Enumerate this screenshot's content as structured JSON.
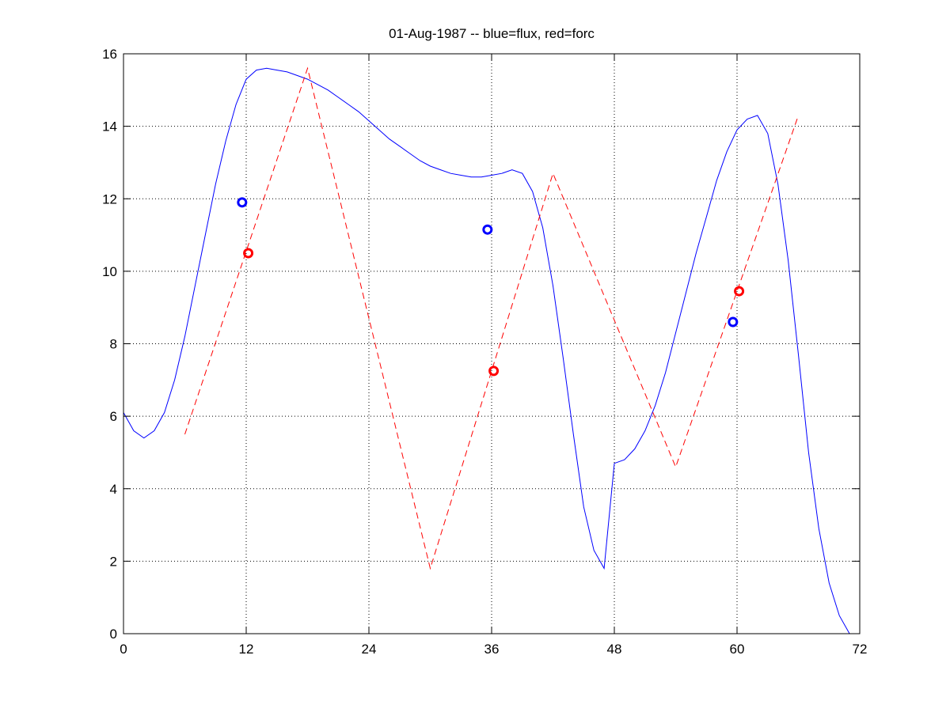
{
  "chart_data": {
    "type": "line",
    "title": "01-Aug-1987 -- blue=flux, red=forc",
    "xlabel": "",
    "ylabel": "",
    "xlim": [
      0,
      72
    ],
    "ylim": [
      0,
      16
    ],
    "xticks": [
      0,
      12,
      24,
      36,
      48,
      60,
      72
    ],
    "yticks": [
      0,
      2,
      4,
      6,
      8,
      10,
      12,
      14,
      16
    ],
    "grid": true,
    "series": [
      {
        "color": "#0000ff",
        "style": "solid",
        "x": [
          0,
          1,
          2,
          3,
          4,
          5,
          6,
          7,
          8,
          9,
          10,
          11,
          12,
          13,
          14,
          15,
          16,
          17,
          18,
          19,
          20,
          21,
          22,
          23,
          24,
          25,
          26,
          27,
          28,
          29,
          30,
          31,
          32,
          33,
          34,
          35,
          36,
          37,
          38,
          39,
          40,
          41,
          42,
          43,
          44,
          45,
          46,
          47,
          48,
          49,
          50,
          51,
          52,
          53,
          54,
          55,
          56,
          57,
          58,
          59,
          60,
          61,
          62,
          63,
          64,
          65,
          66,
          67,
          68,
          69,
          70,
          71
        ],
        "y": [
          6.1,
          5.6,
          5.4,
          5.6,
          6.1,
          7.0,
          8.2,
          9.6,
          11.0,
          12.4,
          13.6,
          14.6,
          15.3,
          15.55,
          15.6,
          15.55,
          15.5,
          15.4,
          15.3,
          15.15,
          15.0,
          14.8,
          14.6,
          14.4,
          14.15,
          13.9,
          13.65,
          13.45,
          13.25,
          13.05,
          12.9,
          12.8,
          12.7,
          12.65,
          12.6,
          12.6,
          12.65,
          12.7,
          12.8,
          12.7,
          12.2,
          11.2,
          9.6,
          7.6,
          5.5,
          3.5,
          2.3,
          1.8,
          4.7,
          4.8,
          5.1,
          5.6,
          6.3,
          7.2,
          8.3,
          9.4,
          10.5,
          11.5,
          12.5,
          13.3,
          13.9,
          14.2,
          14.3,
          13.8,
          12.4,
          10.3,
          7.7,
          5.0,
          2.9,
          1.4,
          0.5,
          0
        ]
      },
      {
        "color": "#ff0000",
        "style": "dashed",
        "x": [
          6,
          18,
          30,
          42,
          54,
          66
        ],
        "y": [
          5.5,
          15.6,
          1.8,
          12.7,
          4.6,
          14.3
        ]
      }
    ],
    "markers": [
      {
        "x": 11.6,
        "y": 11.9,
        "color": "#0000ff"
      },
      {
        "x": 12.2,
        "y": 10.5,
        "color": "#ff0000"
      },
      {
        "x": 35.6,
        "y": 11.15,
        "color": "#0000ff"
      },
      {
        "x": 36.2,
        "y": 7.25,
        "color": "#ff0000"
      },
      {
        "x": 59.6,
        "y": 8.6,
        "color": "#0000ff"
      },
      {
        "x": 60.2,
        "y": 9.45,
        "color": "#ff0000"
      }
    ]
  }
}
